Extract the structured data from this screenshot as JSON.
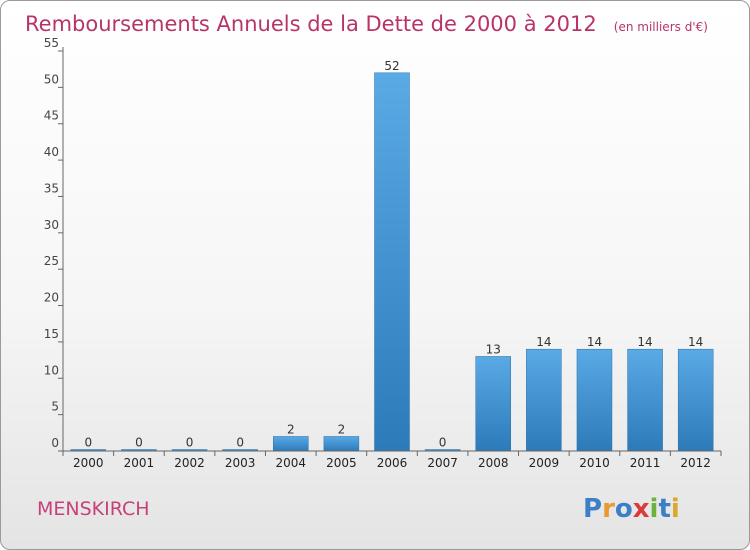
{
  "chart_data": {
    "type": "bar",
    "title": "Remboursements Annuels de la Dette de 2000 à 2012",
    "unit_note": "(en milliers d'€)",
    "categories": [
      "2000",
      "2001",
      "2002",
      "2003",
      "2004",
      "2005",
      "2006",
      "2007",
      "2008",
      "2009",
      "2010",
      "2011",
      "2012"
    ],
    "values": [
      0,
      0,
      0,
      0,
      2,
      2,
      52,
      0,
      13,
      14,
      14,
      14,
      14
    ],
    "data_labels": [
      "0",
      "0",
      "0",
      "0",
      "2",
      "2",
      "52",
      "0",
      "13",
      "14",
      "14",
      "14",
      "14"
    ],
    "ylim": [
      0,
      55
    ],
    "yticks": [
      "0",
      "5",
      "10",
      "15",
      "20",
      "25",
      "30",
      "35",
      "40",
      "45",
      "50",
      "55"
    ],
    "xlabel": "",
    "ylabel": "",
    "grid": false,
    "legend": "none"
  },
  "footer": {
    "commune": "MENSKIRCH",
    "brand_letters": [
      "P",
      "r",
      "o",
      "x",
      "i",
      "t",
      "i"
    ],
    "brand_colors": [
      "#3d7fc6",
      "#e89a2c",
      "#3d7fc6",
      "#d93a3a",
      "#6bb33c",
      "#3d7fc6",
      "#d9a82c"
    ]
  },
  "colors": {
    "bar_light": "#5aaae6",
    "bar_dark": "#2d7ab8",
    "title": "#b8336a",
    "axis": "#666666"
  }
}
